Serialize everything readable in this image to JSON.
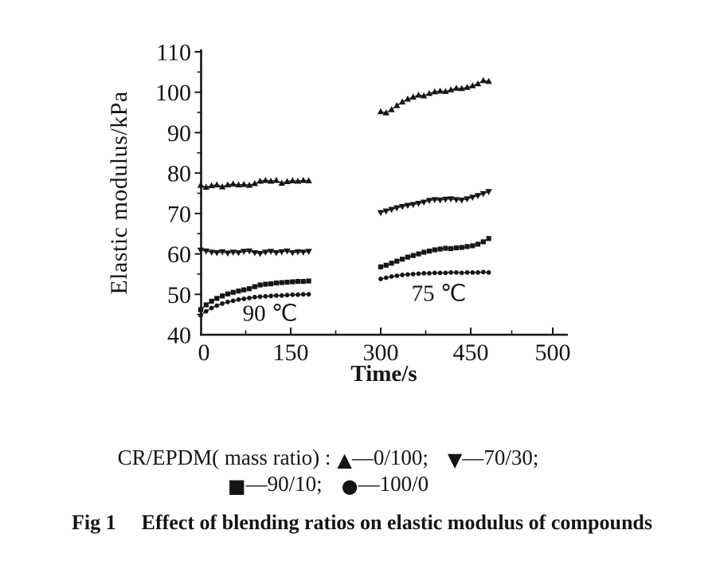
{
  "colors": {
    "ink": "#151515",
    "background": "#ffffff"
  },
  "chart_data": {
    "type": "line",
    "title": "",
    "xlabel": "Time/s",
    "ylabel": "Elastic modulus/kPa",
    "xlim": [
      0,
      500
    ],
    "ylim": [
      40,
      110
    ],
    "x_ticks": [
      0,
      150,
      300,
      450,
      500
    ],
    "y_ticks": [
      40,
      50,
      60,
      70,
      80,
      90,
      100,
      110
    ],
    "grid": false,
    "legend_position": "below-figure",
    "annotations": [
      {
        "text": "90 ℃",
        "x": 115,
        "y": 45.3
      },
      {
        "text": "75 ℃",
        "x": 397,
        "y": 50.2
      }
    ],
    "segment_x": [
      [
        0,
        9,
        18,
        27,
        36,
        45,
        54,
        63,
        72,
        81,
        90,
        99,
        108,
        117,
        126,
        135,
        144,
        153,
        162,
        171,
        180
      ],
      [
        300,
        309,
        318,
        327,
        336,
        345,
        354,
        363,
        372,
        381,
        390,
        399,
        408,
        417,
        426,
        435,
        444,
        453,
        462,
        471,
        480
      ]
    ],
    "series": [
      {
        "name": "0/100",
        "marker": "triangle-up",
        "values": [
          [
            77.0,
            76.5,
            76.9,
            77.1,
            76.6,
            77.1,
            77.3,
            77.1,
            77.2,
            77.0,
            77.4,
            78.0,
            78.2,
            78.0,
            78.2,
            77.5,
            77.9,
            78.1,
            78.0,
            78.2,
            78.1
          ],
          [
            95.2,
            94.9,
            95.7,
            96.7,
            97.6,
            98.3,
            98.8,
            99.3,
            99.1,
            99.7,
            100.1,
            100.3,
            100.2,
            100.6,
            101.0,
            100.9,
            101.2,
            101.6,
            102.1,
            102.9,
            102.7
          ]
        ]
      },
      {
        "name": "70/30",
        "marker": "triangle-down",
        "values": [
          [
            60.9,
            60.7,
            60.4,
            60.3,
            60.5,
            60.2,
            60.4,
            60.3,
            60.6,
            60.7,
            60.3,
            60.1,
            60.4,
            60.6,
            60.3,
            60.5,
            60.7,
            60.3,
            60.5,
            60.4,
            60.6
          ],
          [
            70.2,
            70.6,
            71.0,
            71.4,
            71.7,
            72.0,
            72.2,
            72.5,
            72.8,
            73.2,
            73.4,
            73.3,
            73.5,
            73.6,
            73.4,
            73.3,
            73.6,
            74.0,
            74.4,
            74.9,
            75.4
          ]
        ]
      },
      {
        "name": "90/10",
        "marker": "square",
        "values": [
          [
            46.2,
            47.4,
            48.3,
            49.0,
            49.6,
            50.1,
            50.5,
            50.8,
            51.1,
            51.4,
            51.9,
            52.3,
            52.5,
            52.6,
            52.8,
            52.9,
            53.0,
            53.1,
            53.2,
            53.2,
            53.3
          ],
          [
            56.8,
            57.2,
            57.7,
            58.2,
            58.7,
            59.2,
            59.6,
            60.0,
            60.4,
            60.7,
            61.0,
            61.2,
            61.4,
            61.3,
            61.5,
            61.6,
            61.8,
            62.0,
            62.4,
            63.0,
            63.8
          ]
        ]
      },
      {
        "name": "100/0",
        "marker": "circle",
        "values": [
          [
            44.8,
            45.8,
            46.6,
            47.2,
            47.7,
            48.1,
            48.4,
            48.7,
            48.9,
            49.1,
            49.3,
            49.4,
            49.5,
            49.6,
            49.7,
            49.7,
            49.8,
            49.9,
            49.9,
            50.0,
            50.0
          ],
          [
            53.8,
            54.1,
            54.4,
            54.6,
            54.8,
            54.9,
            55.0,
            55.1,
            55.2,
            55.2,
            55.3,
            55.3,
            55.3,
            55.4,
            55.4,
            55.3,
            55.4,
            55.4,
            55.4,
            55.5,
            55.4
          ]
        ]
      }
    ]
  },
  "legend": {
    "prefix": "CR/EPDM( mass ratio) :",
    "entries": [
      {
        "marker": "▲",
        "label": "—0/100;"
      },
      {
        "marker": "▼",
        "label": "—70/30;"
      },
      {
        "marker": "■",
        "label": "—90/10;"
      },
      {
        "marker": "●",
        "label": "—100/0"
      }
    ]
  },
  "caption": {
    "label": "Fig 1",
    "text": "Effect of blending ratios on elastic modulus of compounds"
  }
}
